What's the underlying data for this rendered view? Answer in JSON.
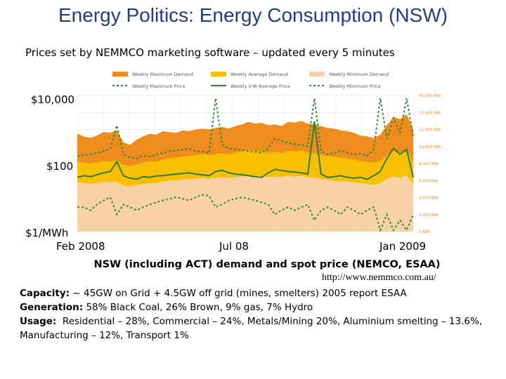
{
  "title": "Energy Politics: Energy Consumption (NSW)",
  "subtitle": "Prices set by NEMMCO marketing software – updated every 5 minutes",
  "chart_data": {
    "type": "area",
    "y_left_ticks": [
      "$10,000",
      "$100",
      "$1/MWh"
    ],
    "x_ticks": [
      "Feb 2008",
      "Jul 08",
      "Jan 2009"
    ],
    "y_right_ticks": [
      "16,000 MW",
      "14,000 MW",
      "12,000 MW",
      "10,000 MW",
      "8,000 MW",
      "6,000 MW",
      "4,000 MW",
      "2,000 MW",
      "0 MW"
    ],
    "y_right_range": [
      0,
      16000
    ],
    "legend": [
      "Weekly Maximum Demand",
      "Weekly Average Demand",
      "Weekly Minimum Demand",
      "Weekly Maximum Price",
      "Weekly V-W Average Price",
      "Weekly Minimum Price"
    ],
    "colors": {
      "max_demand": "#f08c1e",
      "avg_demand": "#f8c000",
      "min_demand": "#f8d2a4",
      "max_price": "#2e8b3a",
      "vw_price": "#2e7d32",
      "min_price": "#2e8b3a"
    },
    "weeks": 52,
    "series": [
      {
        "name": "Weekly Maximum Demand",
        "unit": "MW",
        "values": [
          11500,
          11200,
          11000,
          11300,
          11700,
          11600,
          11900,
          10500,
          10200,
          10800,
          11200,
          11500,
          11400,
          11800,
          11700,
          11600,
          11900,
          11800,
          12000,
          12100,
          12000,
          12200,
          12300,
          12100,
          12400,
          12600,
          12900,
          12700,
          12800,
          12500,
          12600,
          12400,
          12900,
          12800,
          13000,
          12700,
          12600,
          12400,
          12200,
          12100,
          11900,
          11800,
          11600,
          11300,
          11200,
          11000,
          11400,
          12500,
          13500,
          13200,
          13800,
          12000
        ]
      },
      {
        "name": "Weekly Average Demand",
        "unit": "MW",
        "values": [
          8200,
          8100,
          8000,
          8150,
          8300,
          8200,
          8400,
          7800,
          7700,
          7900,
          8100,
          8300,
          8200,
          8500,
          8600,
          8700,
          8800,
          8900,
          9000,
          9100,
          9000,
          9100,
          9200,
          9100,
          9300,
          9400,
          9600,
          9500,
          9400,
          9300,
          9400,
          9200,
          9500,
          9400,
          9500,
          9300,
          9200,
          9000,
          8900,
          8800,
          8700,
          8600,
          8500,
          8300,
          8200,
          8100,
          8300,
          9000,
          9500,
          9300,
          9600,
          8200
        ]
      },
      {
        "name": "Weekly Minimum Demand",
        "unit": "MW",
        "values": [
          5800,
          5700,
          5600,
          5700,
          5900,
          5800,
          5900,
          5400,
          5300,
          5500,
          5600,
          5700,
          5700,
          5900,
          6000,
          6000,
          6100,
          6200,
          6200,
          6300,
          6200,
          6300,
          6400,
          6300,
          6400,
          6500,
          6600,
          6500,
          6500,
          6400,
          6500,
          6400,
          6600,
          6500,
          6600,
          6400,
          6300,
          6200,
          6100,
          6000,
          5900,
          5900,
          5800,
          5700,
          5600,
          5500,
          5700,
          6200,
          6500,
          6300,
          6600,
          5600
        ]
      },
      {
        "name": "Weekly V-W Average Price",
        "unit": "$/MWh",
        "values": [
          40,
          45,
          42,
          48,
          55,
          60,
          120,
          45,
          38,
          35,
          42,
          40,
          44,
          45,
          48,
          50,
          52,
          55,
          50,
          48,
          45,
          60,
          65,
          55,
          50,
          48,
          45,
          42,
          40,
          55,
          70,
          65,
          60,
          58,
          55,
          50,
          2000,
          50,
          40,
          42,
          45,
          40,
          38,
          40,
          35,
          45,
          60,
          150,
          300,
          200,
          280,
          40
        ]
      },
      {
        "name": "Weekly Maximum Price",
        "unit": "$/MWh",
        "values": [
          180,
          190,
          200,
          220,
          250,
          300,
          1500,
          200,
          160,
          150,
          180,
          170,
          200,
          220,
          250,
          260,
          280,
          300,
          250,
          240,
          220,
          10000,
          400,
          300,
          280,
          270,
          250,
          240,
          220,
          300,
          600,
          500,
          450,
          400,
          380,
          350,
          10000,
          250,
          200,
          220,
          260,
          220,
          200,
          210,
          180,
          280,
          10000,
          600,
          2500,
          900,
          10000,
          700
        ]
      },
      {
        "name": "Weekly Minimum Price",
        "unit": "$/MWh",
        "values": [
          5,
          5,
          4,
          6,
          8,
          10,
          3,
          6,
          5,
          4,
          5,
          6,
          7,
          8,
          9,
          10,
          9,
          8,
          10,
          12,
          11,
          5,
          6,
          8,
          9,
          10,
          9,
          8,
          7,
          6,
          3,
          4,
          5,
          4,
          5,
          6,
          2,
          4,
          5,
          4,
          3,
          5,
          4,
          3,
          4,
          5,
          1,
          3,
          1,
          2,
          1,
          3
        ]
      }
    ]
  },
  "caption": "NSW (including ACT) demand and spot price (NEMCO, ESAA)",
  "url": "http://www.nemmco.com.au/",
  "info": [
    {
      "label": "Capacity:",
      "text": "~ 45GW on Grid + 4.5GW off grid (mines,  smelters)   2005 report ESAA"
    },
    {
      "label": "Generation:",
      "text": "58% Black Coal, 26% Brown, 9% gas, 7% Hydro"
    },
    {
      "label": "Usage:",
      "text": "Residential – 28%, Commercial – 24%, Metals/Mining 20%, Aluminium smelting – 13.6%, Manufacturing – 12%, Transport 1%"
    }
  ]
}
